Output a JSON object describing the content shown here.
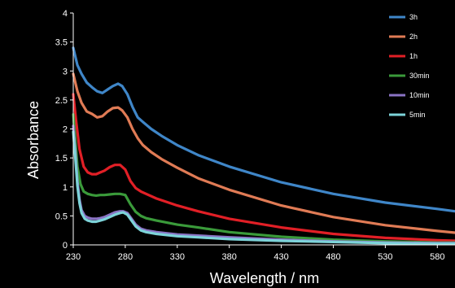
{
  "chart_data": {
    "type": "line",
    "title": "",
    "xlabel": "Wavelength / nm",
    "ylabel": "Absorbance",
    "xlim": [
      230,
      597
    ],
    "ylim": [
      0,
      4
    ],
    "x_ticks": [
      "230",
      "280",
      "330",
      "380",
      "430",
      "480",
      "530",
      "580"
    ],
    "y_ticks": [
      "0",
      "0.5",
      "1",
      "1.5",
      "2",
      "2.5",
      "3",
      "3.5",
      "4"
    ],
    "grid": false,
    "legend_position": "top-right",
    "series": [
      {
        "name": "3h",
        "color": "#3f86c8",
        "x": [
          230,
          234,
          238,
          243,
          248,
          253,
          258,
          263,
          268,
          273,
          277,
          282,
          287,
          292,
          297,
          305,
          315,
          330,
          350,
          380,
          430,
          480,
          530,
          580,
          597
        ],
        "y": [
          3.4,
          3.1,
          2.95,
          2.8,
          2.72,
          2.65,
          2.62,
          2.68,
          2.74,
          2.78,
          2.74,
          2.6,
          2.38,
          2.2,
          2.12,
          2.0,
          1.88,
          1.72,
          1.55,
          1.35,
          1.08,
          0.88,
          0.73,
          0.62,
          0.58
        ]
      },
      {
        "name": "2h",
        "color": "#e07b55",
        "x": [
          230,
          234,
          238,
          243,
          248,
          253,
          258,
          263,
          268,
          273,
          277,
          282,
          287,
          292,
          297,
          305,
          315,
          330,
          350,
          380,
          430,
          480,
          530,
          580,
          597
        ],
        "y": [
          2.95,
          2.65,
          2.45,
          2.3,
          2.26,
          2.2,
          2.22,
          2.3,
          2.36,
          2.37,
          2.32,
          2.2,
          2.0,
          1.84,
          1.72,
          1.6,
          1.48,
          1.33,
          1.15,
          0.95,
          0.68,
          0.48,
          0.34,
          0.24,
          0.21
        ]
      },
      {
        "name": "1h",
        "color": "#e11f26",
        "x": [
          230,
          233,
          236,
          240,
          244,
          248,
          252,
          256,
          260,
          265,
          270,
          275,
          280,
          285,
          290,
          295,
          300,
          310,
          330,
          350,
          380,
          430,
          480,
          530,
          580,
          597
        ],
        "y": [
          2.6,
          2.1,
          1.65,
          1.35,
          1.25,
          1.22,
          1.22,
          1.25,
          1.28,
          1.34,
          1.38,
          1.38,
          1.3,
          1.1,
          0.98,
          0.92,
          0.88,
          0.8,
          0.68,
          0.58,
          0.45,
          0.3,
          0.19,
          0.12,
          0.08,
          0.07
        ]
      },
      {
        "name": "30min",
        "color": "#3a9a3a",
        "x": [
          230,
          232,
          234,
          237,
          240,
          244,
          248,
          252,
          256,
          260,
          265,
          270,
          275,
          280,
          285,
          290,
          295,
          300,
          310,
          330,
          350,
          380,
          430,
          480,
          530,
          580,
          597
        ],
        "y": [
          2.25,
          1.8,
          1.35,
          1.05,
          0.92,
          0.88,
          0.86,
          0.85,
          0.86,
          0.86,
          0.87,
          0.88,
          0.88,
          0.86,
          0.7,
          0.57,
          0.5,
          0.46,
          0.42,
          0.35,
          0.3,
          0.22,
          0.14,
          0.09,
          0.06,
          0.04,
          0.04
        ]
      },
      {
        "name": "10min",
        "color": "#8a73c4",
        "x": [
          230,
          232,
          234,
          236,
          238,
          241,
          244,
          248,
          252,
          256,
          260,
          265,
          270,
          275,
          278,
          282,
          286,
          290,
          295,
          300,
          310,
          330,
          350,
          380,
          430,
          480,
          530,
          580,
          597
        ],
        "y": [
          2.05,
          1.6,
          1.1,
          0.78,
          0.6,
          0.5,
          0.47,
          0.45,
          0.45,
          0.46,
          0.48,
          0.52,
          0.56,
          0.58,
          0.58,
          0.55,
          0.45,
          0.35,
          0.28,
          0.25,
          0.22,
          0.18,
          0.16,
          0.13,
          0.09,
          0.06,
          0.04,
          0.03,
          0.03
        ]
      },
      {
        "name": "5min",
        "color": "#7dd3d9",
        "x": [
          230,
          232,
          234,
          236,
          238,
          241,
          244,
          248,
          252,
          256,
          260,
          265,
          270,
          275,
          278,
          282,
          286,
          290,
          295,
          300,
          310,
          330,
          350,
          380,
          430,
          480,
          530,
          580,
          597
        ],
        "y": [
          1.95,
          1.5,
          1.02,
          0.72,
          0.55,
          0.45,
          0.42,
          0.4,
          0.4,
          0.42,
          0.44,
          0.48,
          0.52,
          0.55,
          0.56,
          0.52,
          0.42,
          0.32,
          0.25,
          0.22,
          0.19,
          0.15,
          0.13,
          0.1,
          0.07,
          0.05,
          0.03,
          0.02,
          0.02
        ]
      }
    ]
  }
}
